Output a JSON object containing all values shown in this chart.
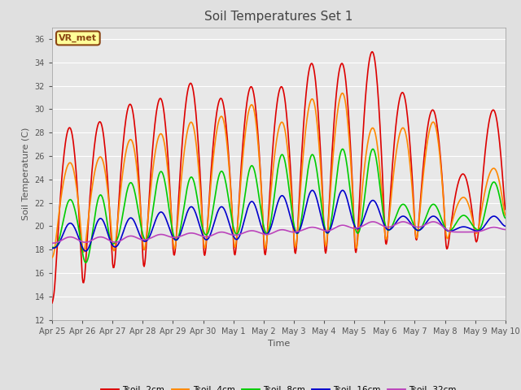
{
  "title": "Soil Temperatures Set 1",
  "xlabel": "Time",
  "ylabel": "Soil Temperature (C)",
  "ylim": [
    12,
    37
  ],
  "yticks": [
    12,
    14,
    16,
    18,
    20,
    22,
    24,
    26,
    28,
    30,
    32,
    34,
    36
  ],
  "plot_bg": "#e8e8e8",
  "fig_bg": "#e0e0e0",
  "grid_color": "#ffffff",
  "annotation_text": "VR_met",
  "annotation_bg": "#ffff99",
  "annotation_border": "#8b4513",
  "series_colors": {
    "Tsoil -2cm": "#dd0000",
    "Tsoil -4cm": "#ff8800",
    "Tsoil -8cm": "#00cc00",
    "Tsoil -16cm": "#0000cc",
    "Tsoil -32cm": "#bb44bb"
  },
  "line_width": 1.2,
  "tick_label_color": "#555555",
  "title_color": "#444444",
  "day_labels": [
    "Apr 25",
    "Apr 26",
    "Apr 27",
    "Apr 28",
    "Apr 29",
    "Apr 30",
    "May 1",
    "May 2",
    "May 3",
    "May 4",
    "May 5",
    "May 6",
    "May 7",
    "May 8",
    "May 9",
    "May 10"
  ],
  "peaks_2cm": [
    28.5,
    13.0,
    29.0,
    14.2,
    30.5,
    15.5,
    31.0,
    15.5,
    32.3,
    16.5,
    31.0,
    16.5,
    32.0,
    16.5,
    32.0,
    16.5,
    34.0,
    16.5,
    34.0,
    16.5,
    35.0,
    16.5,
    31.5,
    17.5,
    30.0,
    18.0,
    24.5,
    17.5,
    30.0,
    18.0
  ],
  "peaks_4cm": [
    25.5,
    17.0,
    26.0,
    17.0,
    27.5,
    17.0,
    28.0,
    17.0,
    29.0,
    17.0,
    29.5,
    17.0,
    30.5,
    17.0,
    29.0,
    17.0,
    31.0,
    17.0,
    31.5,
    17.0,
    28.5,
    17.0,
    28.5,
    18.0,
    29.0,
    18.0,
    22.5,
    18.5,
    25.0,
    19.0
  ],
  "peaks_8cm": [
    22.5,
    18.0,
    23.0,
    16.5,
    24.0,
    18.5,
    25.0,
    18.5,
    24.5,
    18.5,
    25.0,
    19.0,
    25.5,
    19.0,
    26.5,
    19.0,
    26.5,
    19.0,
    27.0,
    19.0,
    27.0,
    19.0,
    22.0,
    19.5,
    22.0,
    19.5,
    21.0,
    19.5,
    24.0,
    19.5
  ],
  "peaks_16cm": [
    20.5,
    18.0,
    21.0,
    17.5,
    21.0,
    18.0,
    21.5,
    18.5,
    22.0,
    18.5,
    22.0,
    18.5,
    22.5,
    18.5,
    23.0,
    19.0,
    23.5,
    19.0,
    23.5,
    19.0,
    22.5,
    19.5,
    21.0,
    19.5,
    21.0,
    19.5,
    20.0,
    19.5,
    21.0,
    19.5
  ],
  "peaks_32cm": [
    19.2,
    18.5,
    19.2,
    18.5,
    19.3,
    18.5,
    19.4,
    18.8,
    19.5,
    19.0,
    19.6,
    19.0,
    19.7,
    19.2,
    19.8,
    19.2,
    20.0,
    19.5,
    20.2,
    19.5,
    20.5,
    19.8,
    20.5,
    19.8,
    20.5,
    19.8,
    19.5,
    19.5,
    20.0,
    19.5
  ]
}
